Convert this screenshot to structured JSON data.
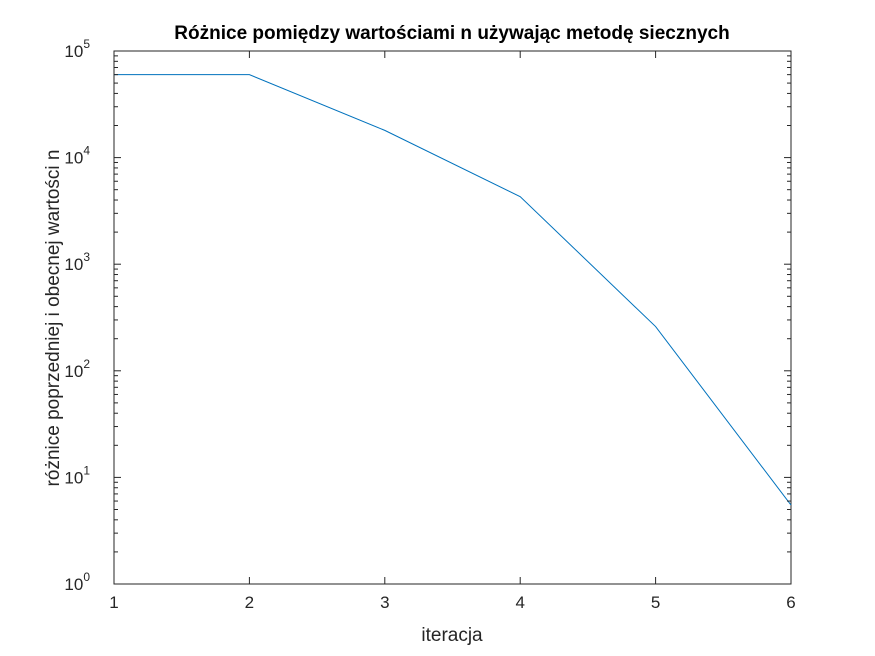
{
  "chart_data": {
    "type": "line",
    "title": "Różnice pomiędzy wartościami n używając metodę siecznych",
    "xlabel": "iteracja",
    "ylabel": "różnice poprzedniej i obecnej wartości n",
    "x": [
      1,
      2,
      3,
      4,
      5,
      6
    ],
    "y_scale": "log",
    "xlim": [
      1,
      6
    ],
    "ylim": [
      1,
      100000
    ],
    "grid": false,
    "x_ticks": [
      "1",
      "2",
      "3",
      "4",
      "5",
      "6"
    ],
    "y_ticks": [
      {
        "base": "10",
        "exp": "0"
      },
      {
        "base": "10",
        "exp": "1"
      },
      {
        "base": "10",
        "exp": "2"
      },
      {
        "base": "10",
        "exp": "3"
      },
      {
        "base": "10",
        "exp": "4"
      },
      {
        "base": "10",
        "exp": "5"
      }
    ],
    "series": [
      {
        "color": "#0072bd",
        "values": [
          60000,
          60000,
          18000,
          4300,
          260,
          5.5
        ]
      }
    ]
  }
}
